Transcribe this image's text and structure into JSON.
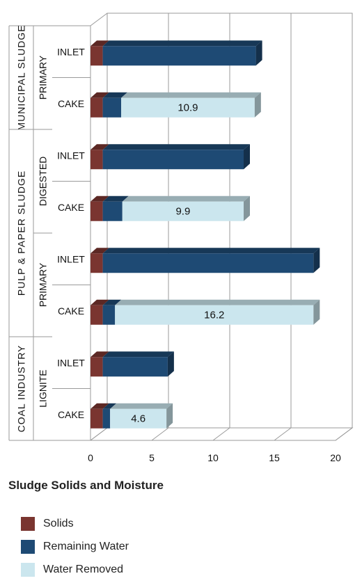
{
  "chart_data": {
    "type": "bar",
    "orientation": "horizontal",
    "stacked": true,
    "title": "Sludge Solids and Moisture",
    "xlim": [
      0,
      20
    ],
    "x_ticks": [
      "0",
      "5",
      "10",
      "15",
      "20"
    ],
    "groups": [
      {
        "industry": "MUNICIPAL SLUDGE",
        "type": "PRIMARY",
        "rows": [
          {
            "label": "INLET",
            "values": [
              1,
              12.5,
              0
            ]
          },
          {
            "label": "CAKE",
            "values": [
              1,
              1.5,
              10.9
            ]
          }
        ]
      },
      {
        "industry": "PULP & PAPER SLUDGE",
        "type": "DIGESTED",
        "rows": [
          {
            "label": "INLET",
            "values": [
              1,
              11.5,
              0
            ]
          },
          {
            "label": "CAKE",
            "values": [
              1,
              1.6,
              9.9
            ]
          }
        ]
      },
      {
        "industry": "PULP & PAPER SLUDGE",
        "type": "PRIMARY",
        "rows": [
          {
            "label": "INLET",
            "values": [
              1,
              17.2,
              0
            ]
          },
          {
            "label": "CAKE",
            "values": [
              1,
              1.0,
              16.2
            ]
          }
        ]
      },
      {
        "industry": "COAL INDUSTRY",
        "type": "LIGNITE",
        "rows": [
          {
            "label": "INLET",
            "values": [
              1,
              5.3,
              0
            ]
          },
          {
            "label": "CAKE",
            "values": [
              1,
              0.6,
              4.6
            ]
          }
        ]
      }
    ],
    "data_labels": [
      "10.9",
      "9.9",
      "16.2",
      "4.6"
    ],
    "series": [
      {
        "name": "Solids",
        "color": "#7a3530"
      },
      {
        "name": "Remaining Water",
        "color": "#1e4a74"
      },
      {
        "name": "Water Removed",
        "color": "#cbe6ee"
      }
    ],
    "industry_labels": [
      "MUNICIPAL SLUDGE",
      "PULP & PAPER SLUDGE",
      "COAL INDUSTRY"
    ],
    "grid": true,
    "legend_position": "bottom-left"
  }
}
